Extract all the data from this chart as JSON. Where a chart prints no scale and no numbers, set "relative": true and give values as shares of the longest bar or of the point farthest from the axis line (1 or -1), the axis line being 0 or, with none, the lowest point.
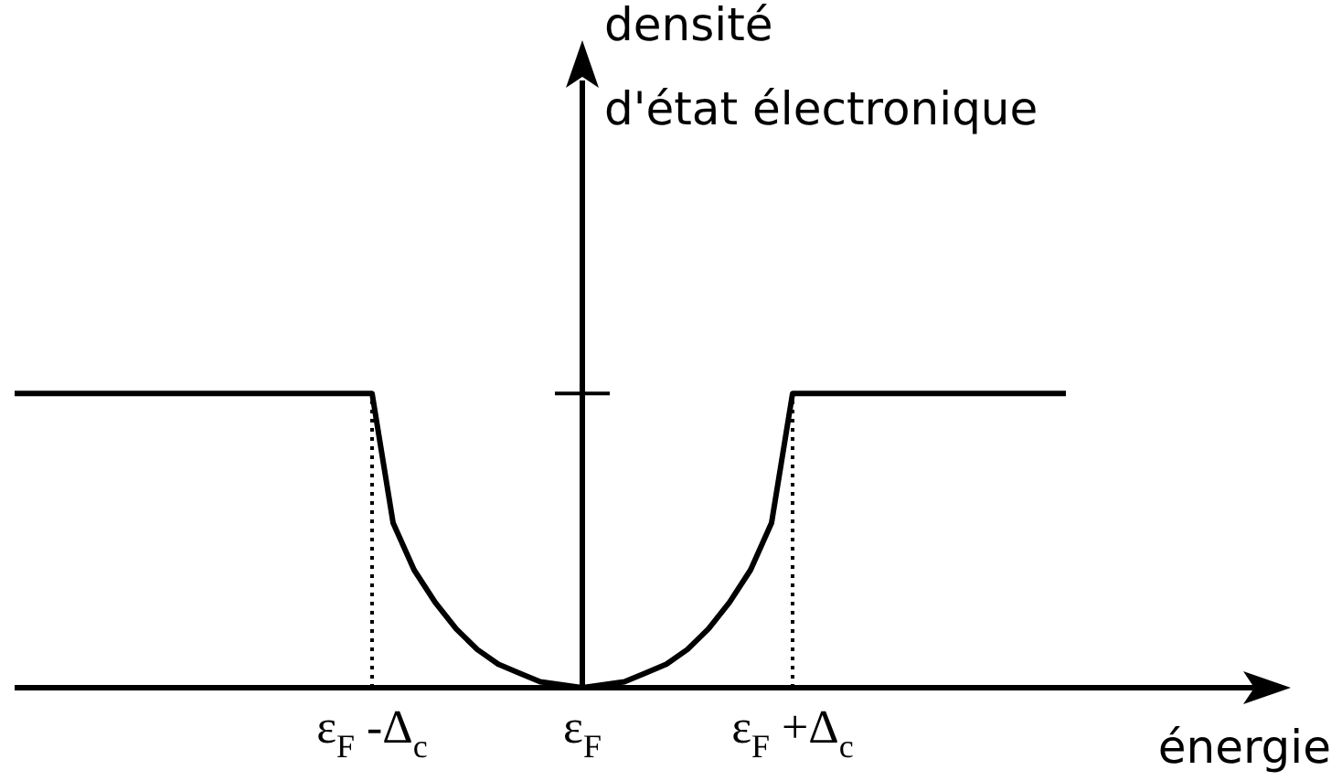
{
  "chart_data": {
    "type": "line",
    "relative": true,
    "xlabel": "énergie",
    "annotations": [
      "densité\nd'état électronique"
    ],
    "categories": [
      null,
      null,
      null,
      null,
      null,
      null,
      null,
      null,
      null,
      null,
      null,
      null,
      null,
      null,
      null,
      null,
      null,
      "ε$_{F}$ -Δ$_{c}$",
      null,
      null,
      null,
      null,
      null,
      null,
      null,
      null,
      null,
      "ε$_{F}$",
      null,
      null,
      null,
      null,
      null,
      null,
      null,
      null,
      null,
      "ε$_{F}$ +Δ$_{c}$",
      null,
      null,
      null,
      null,
      null,
      null,
      null,
      null,
      null,
      null,
      null,
      null,
      null,
      null,
      null,
      null,
      null,
      null,
      null,
      null,
      null,
      null,
      null
    ],
    "series": [
      {
        "color": "#000000",
        "values": [
          1,
          1,
          1,
          1,
          1,
          1,
          1,
          1,
          1,
          1,
          1,
          1,
          1,
          1,
          1,
          1,
          1,
          1,
          0.56,
          0.4,
          0.29,
          0.2,
          0.13,
          0.08,
          0.05,
          0.02,
          0.01,
          0,
          0.01,
          0.02,
          0.05,
          0.08,
          0.13,
          0.2,
          0.29,
          0.4,
          0.56,
          1,
          1,
          1,
          1,
          1,
          1,
          1,
          1,
          1,
          1,
          1,
          1,
          1,
          1,
          null,
          null,
          null,
          null,
          null,
          null,
          null,
          null,
          null,
          null
        ]
      }
    ],
    "ref_lines": [
      {
        "axis": "x",
        "value": "ε$_{F}$ -Δ$_{c}$",
        "line_style": "dotted",
        "color": "#000000"
      },
      {
        "axis": "x",
        "value": "ε$_{F}$ +Δ$_{c}$",
        "line_style": "dotted",
        "color": "#000000"
      }
    ],
    "marker": "none",
    "line_style": "solid"
  }
}
